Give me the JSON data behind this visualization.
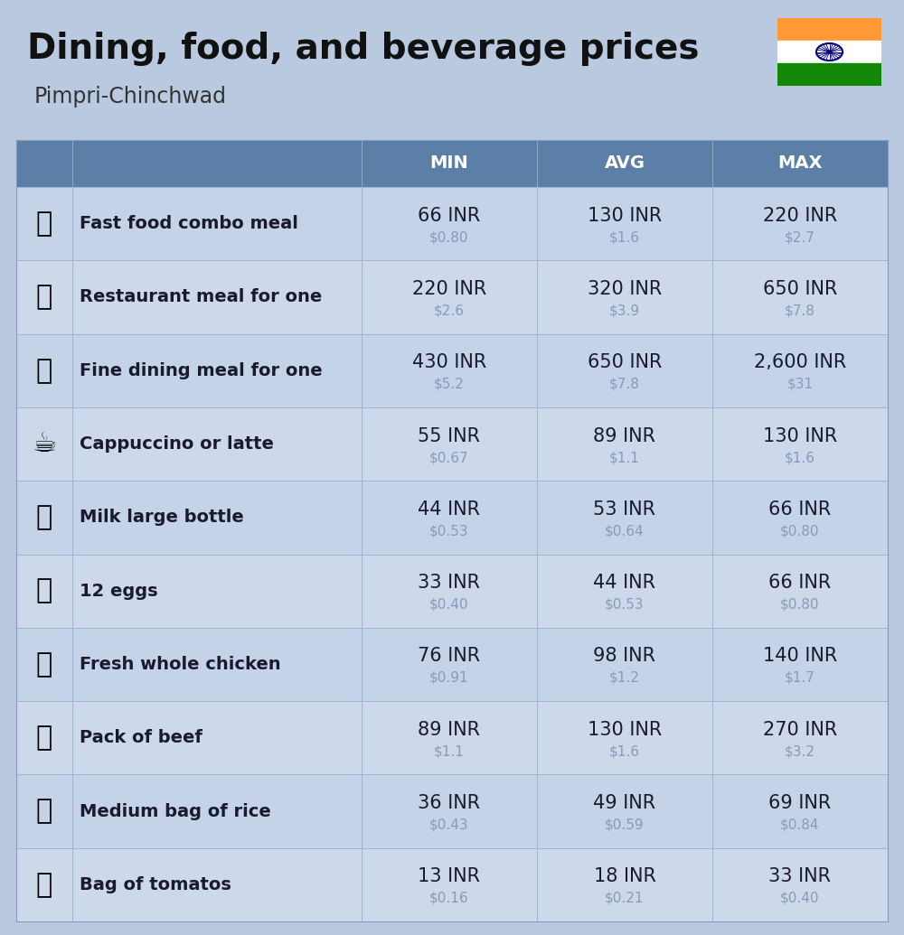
{
  "title": "Dining, food, and beverage prices",
  "subtitle": "Pimpri-Chinchwad",
  "bg_color": "#b8c9e0",
  "header_color": "#5b7fa6",
  "header_text_color": "#ffffff",
  "row_color_even": "#c5d3e8",
  "row_color_odd": "#cdd9ea",
  "value_color": "#1a1a2e",
  "subvalue_color": "#8899bb",
  "columns": [
    "MIN",
    "AVG",
    "MAX"
  ],
  "rows": [
    {
      "label": "Fast food combo meal",
      "min_inr": "66 INR",
      "min_usd": "$0.80",
      "avg_inr": "130 INR",
      "avg_usd": "$1.6",
      "max_inr": "220 INR",
      "max_usd": "$2.7"
    },
    {
      "label": "Restaurant meal for one",
      "min_inr": "220 INR",
      "min_usd": "$2.6",
      "avg_inr": "320 INR",
      "avg_usd": "$3.9",
      "max_inr": "650 INR",
      "max_usd": "$7.8"
    },
    {
      "label": "Fine dining meal for one",
      "min_inr": "430 INR",
      "min_usd": "$5.2",
      "avg_inr": "650 INR",
      "avg_usd": "$7.8",
      "max_inr": "2,600 INR",
      "max_usd": "$31"
    },
    {
      "label": "Cappuccino or latte",
      "min_inr": "55 INR",
      "min_usd": "$0.67",
      "avg_inr": "89 INR",
      "avg_usd": "$1.1",
      "max_inr": "130 INR",
      "max_usd": "$1.6"
    },
    {
      "label": "Milk large bottle",
      "min_inr": "44 INR",
      "min_usd": "$0.53",
      "avg_inr": "53 INR",
      "avg_usd": "$0.64",
      "max_inr": "66 INR",
      "max_usd": "$0.80"
    },
    {
      "label": "12 eggs",
      "min_inr": "33 INR",
      "min_usd": "$0.40",
      "avg_inr": "44 INR",
      "avg_usd": "$0.53",
      "max_inr": "66 INR",
      "max_usd": "$0.80"
    },
    {
      "label": "Fresh whole chicken",
      "min_inr": "76 INR",
      "min_usd": "$0.91",
      "avg_inr": "98 INR",
      "avg_usd": "$1.2",
      "max_inr": "140 INR",
      "max_usd": "$1.7"
    },
    {
      "label": "Pack of beef",
      "min_inr": "89 INR",
      "min_usd": "$1.1",
      "avg_inr": "130 INR",
      "avg_usd": "$1.6",
      "max_inr": "270 INR",
      "max_usd": "$3.2"
    },
    {
      "label": "Medium bag of rice",
      "min_inr": "36 INR",
      "min_usd": "$0.43",
      "avg_inr": "49 INR",
      "avg_usd": "$0.59",
      "max_inr": "69 INR",
      "max_usd": "$0.84"
    },
    {
      "label": "Bag of tomatos",
      "min_inr": "13 INR",
      "min_usd": "$0.16",
      "avg_inr": "18 INR",
      "avg_usd": "$0.21",
      "max_inr": "33 INR",
      "max_usd": "$0.40"
    }
  ],
  "india_flag_colors": [
    "#FF9933",
    "#FFFFFF",
    "#138808"
  ],
  "title_fontsize": 28,
  "subtitle_fontsize": 17,
  "header_fontsize": 14,
  "label_fontsize": 14,
  "value_fontsize": 15,
  "subvalue_fontsize": 11,
  "emoji_fontsize": 22
}
